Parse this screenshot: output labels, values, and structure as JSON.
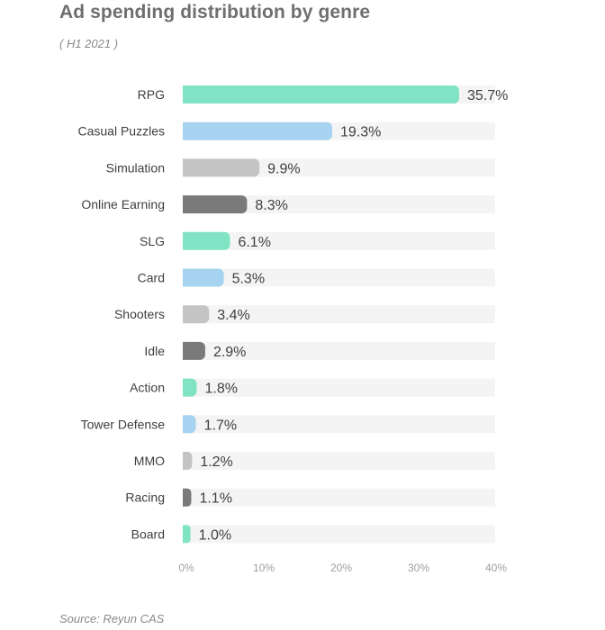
{
  "title": "Ad spending distribution by genre",
  "subtitle": "( H1 2021 )",
  "source": "Source: Reyun CAS",
  "colors": {
    "track": "#f4f4f4",
    "palette": [
      "#7fe3c4",
      "#a6d4f0",
      "#c4c4c4",
      "#7a7a7a"
    ]
  },
  "chart_data": {
    "type": "bar",
    "orientation": "horizontal",
    "categories": [
      "RPG",
      "Casual Puzzles",
      "Simulation",
      "Online Earning",
      "SLG",
      "Card",
      "Shooters",
      "Idle",
      "Action",
      "Tower Defense",
      "MMO",
      "Racing",
      "Board"
    ],
    "values": [
      35.7,
      19.3,
      9.9,
      8.3,
      6.1,
      5.3,
      3.4,
      2.9,
      1.8,
      1.7,
      1.2,
      1.1,
      1.0
    ],
    "value_labels": [
      "35.7%",
      "19.3%",
      "9.9%",
      "8.3%",
      "6.1%",
      "5.3%",
      "3.4%",
      "2.9%",
      "1.8%",
      "1.7%",
      "1.2%",
      "1.1%",
      "1.0%"
    ],
    "xlim": [
      0,
      40
    ],
    "x_ticks": [
      "0%",
      "10%",
      "20%",
      "30%",
      "40%"
    ],
    "grid": false,
    "legend": "none"
  }
}
